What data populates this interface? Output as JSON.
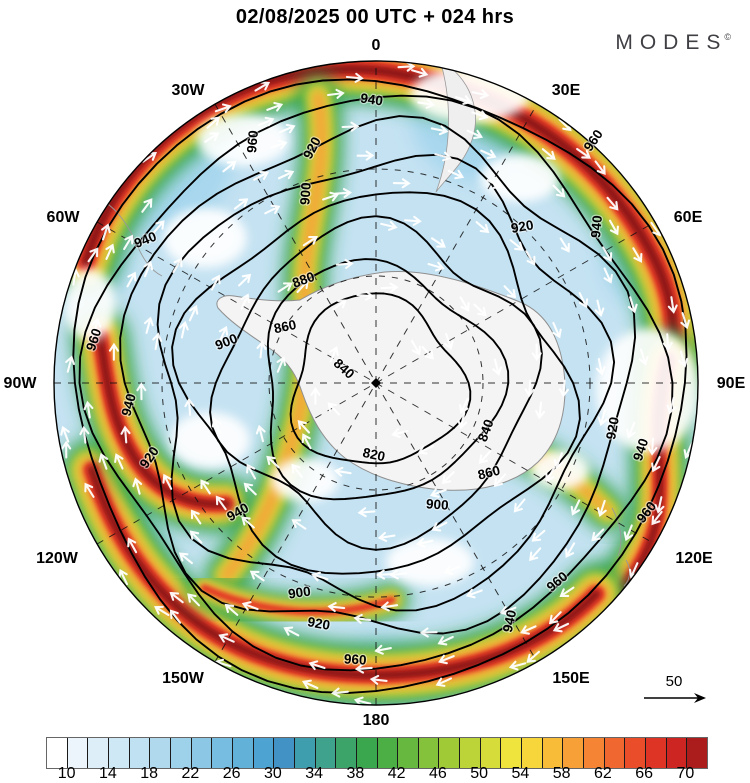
{
  "header": {
    "title": "02/08/2025  00 UTC  + 024 hrs",
    "brand": "MODES",
    "brand_mark": "©"
  },
  "map": {
    "longitude_labels": [
      "0",
      "30E",
      "60E",
      "90E",
      "120E",
      "150E",
      "180",
      "150W",
      "120W",
      "90W",
      "60W",
      "30W"
    ],
    "contour_labels": [
      "940",
      "920",
      "900",
      "960",
      "940",
      "960",
      "940",
      "920",
      "900",
      "880",
      "860",
      "840",
      "820",
      "840",
      "860",
      "900",
      "900",
      "920",
      "960",
      "960",
      "940",
      "960",
      "940",
      "920",
      "960",
      "940",
      "920",
      "940"
    ]
  },
  "reference_vector": {
    "label": "50"
  },
  "colorbar": {
    "ticks": [
      "10",
      "14",
      "18",
      "22",
      "26",
      "30",
      "34",
      "38",
      "42",
      "46",
      "50",
      "54",
      "58",
      "62",
      "66",
      "70"
    ],
    "cell_colors": [
      "#ffffff",
      "#ebf5fb",
      "#ddeef8",
      "#cfe8f5",
      "#c0e1f2",
      "#b0d9ee",
      "#9ed1ea",
      "#8cc8e6",
      "#77bde1",
      "#61b1d9",
      "#4da3d1",
      "#4292c6",
      "#3f9eae",
      "#3ea28c",
      "#3ca469",
      "#3aa64d",
      "#4caf45",
      "#66b93e",
      "#83c23a",
      "#a0cb37",
      "#bcd437",
      "#d6dd3a",
      "#eee43d",
      "#f6d63a",
      "#f8bc38",
      "#f7a037",
      "#f58535",
      "#f0682f",
      "#e94d29",
      "#de3425",
      "#cc2522",
      "#ab1c1c"
    ]
  },
  "chart_data": {
    "type": "heatmap",
    "subtype": "polar_stereographic_weather_map",
    "title": "02/08/2025  00 UTC  + 024 hrs",
    "valid_time": "02/08/2025 00 UTC",
    "lead_time": "+ 024 hrs",
    "brand": "MODES©",
    "projection": "south polar view, Antarctica at map center, 0 longitude at top",
    "longitude_ticks": [
      "0",
      "30E",
      "60E",
      "90E",
      "120E",
      "150E",
      "180",
      "150W",
      "120W",
      "90W",
      "60W",
      "30W"
    ],
    "shaded_field": {
      "legend_position": "bottom",
      "legend_ticks": [
        10,
        14,
        18,
        22,
        26,
        30,
        34,
        38,
        42,
        46,
        50,
        54,
        58,
        62,
        66,
        70
      ],
      "legend_cells": 32,
      "colormap_description": "white → light blue → blue → teal → green → yellow-green → yellow → orange → red → dark red"
    },
    "contour_field": {
      "labeled_levels": [
        820,
        840,
        860,
        880,
        900,
        920,
        940,
        960
      ],
      "contour_interval": 20,
      "innermost_label": 820,
      "outermost_label": 960
    },
    "vector_overlay": {
      "style": "white arrows circulating clockwise around the pole",
      "reference_arrow_value": 50
    },
    "graticule": "dashed meridians every 30 degrees and dashed latitude circles",
    "land_overlay": "Antarctica shown pale gray with thin gray coastline at center"
  }
}
